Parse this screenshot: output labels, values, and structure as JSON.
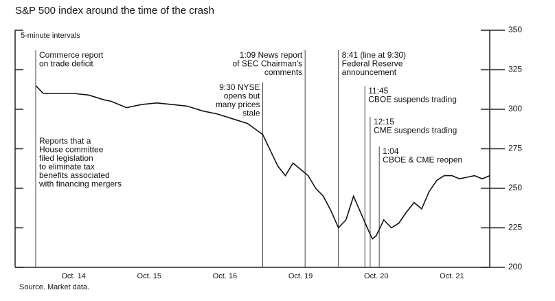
{
  "chart_data": {
    "type": "line",
    "title": "S&P 500 index around the time of the crash",
    "subtitle": "5-minute intervals",
    "source": "Source. Market data.",
    "xlim": [
      0,
      6
    ],
    "xticks": [
      {
        "value": 0.5,
        "label": "Oct. 14"
      },
      {
        "value": 1.5,
        "label": "Oct. 15"
      },
      {
        "value": 2.5,
        "label": "Oct. 16"
      },
      {
        "value": 3.5,
        "label": "Oct. 19"
      },
      {
        "value": 4.5,
        "label": "Oct. 20"
      },
      {
        "value": 5.5,
        "label": "Oct. 21"
      }
    ],
    "ylim": [
      200,
      350
    ],
    "yticks": [
      200,
      225,
      250,
      275,
      300,
      325,
      350
    ],
    "series": [
      {
        "color": "#111111",
        "x": [
          0,
          0.1,
          0.3,
          0.5,
          0.7,
          0.9,
          1.0,
          1.2,
          1.4,
          1.6,
          1.8,
          2.0,
          2.2,
          2.4,
          2.6,
          2.8,
          3.0,
          3.1,
          3.2,
          3.3,
          3.4,
          3.5,
          3.6,
          3.7,
          3.8,
          3.9,
          4.0,
          4.1,
          4.2,
          4.3,
          4.4,
          4.45,
          4.5,
          4.6,
          4.7,
          4.8,
          4.9,
          5.0,
          5.1,
          5.2,
          5.3,
          5.4,
          5.5,
          5.6,
          5.7,
          5.8,
          5.9,
          6.0
        ],
        "values": [
          315,
          310,
          310,
          310,
          309,
          306,
          305,
          301,
          303,
          304,
          303,
          302,
          299,
          297,
          294,
          291,
          284,
          274,
          264,
          258,
          266,
          262,
          258,
          250,
          245,
          236,
          225,
          230,
          245,
          234,
          223,
          218,
          220,
          230,
          225,
          228,
          235,
          241,
          237,
          248,
          255,
          258,
          258,
          256,
          257,
          258,
          256,
          258
        ]
      }
    ],
    "annotations": [
      {
        "x": 0,
        "lines": [
          "Commerce report",
          "on trade deficit"
        ]
      },
      {
        "x": 3.0,
        "lines": [
          "9:30 NYSE",
          "opens but",
          "many prices",
          "stale"
        ]
      },
      {
        "x": 3.56,
        "lines": [
          "1:09 News report",
          "of SEC Chairman's",
          "comments"
        ]
      },
      {
        "x": 4.0,
        "lines": [
          "8:41 (line at 9:30)",
          "Federal Reserve",
          "announcement"
        ]
      },
      {
        "x": 4.35,
        "lines": [
          "11:45",
          "CBOE suspends trading"
        ]
      },
      {
        "x": 4.42,
        "lines": [
          "12:15",
          "CME suspends trading"
        ]
      },
      {
        "x": 4.54,
        "lines": [
          "1:04",
          "CBOE & CME reopen"
        ]
      }
    ],
    "note": [
      "Reports that a",
      "House committee",
      "filed legislation",
      "to eliminate tax",
      "benefits associated",
      "with financing mergers"
    ]
  }
}
